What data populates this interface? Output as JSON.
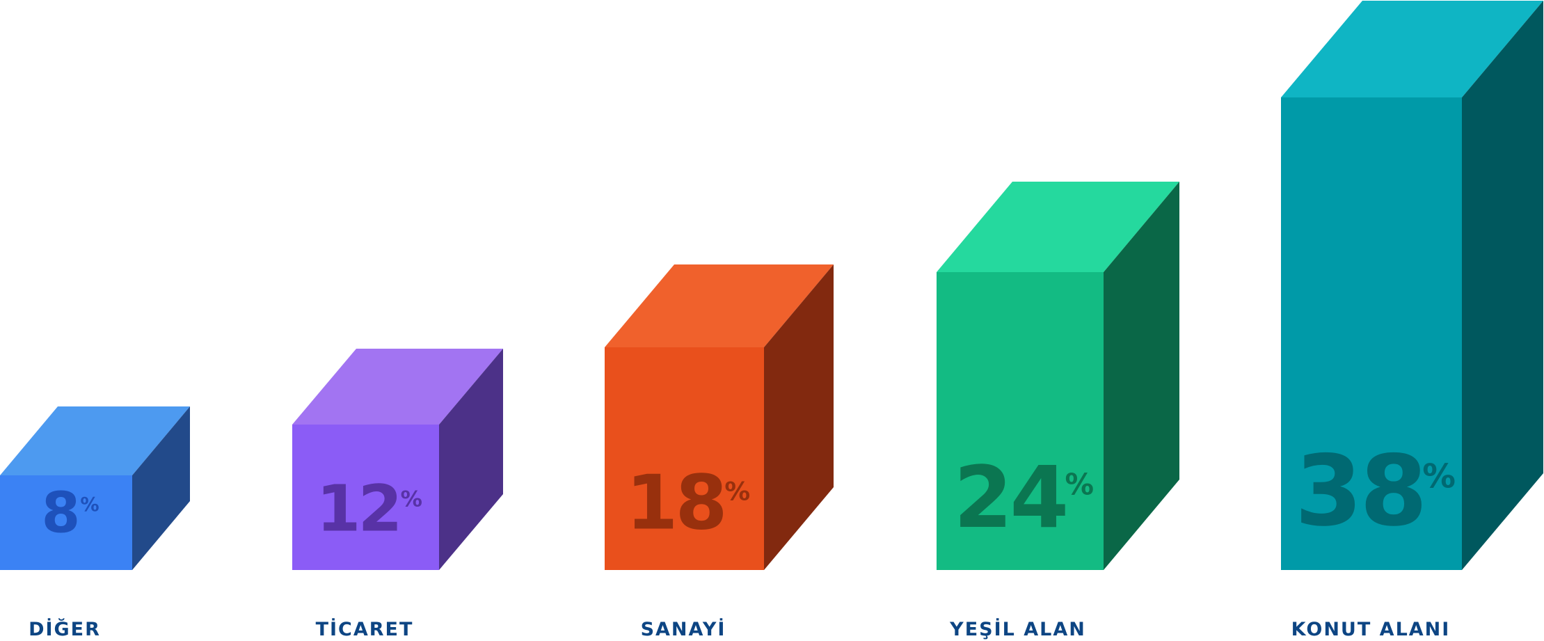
{
  "chart_data": {
    "type": "bar",
    "style": "3d-boxes",
    "categories": [
      "DİĞER",
      "TİCARET",
      "SANAYİ",
      "YEŞİL ALAN",
      "KONUT ALANI"
    ],
    "values": [
      8,
      12,
      18,
      24,
      38
    ],
    "value_labels": [
      "8",
      "12",
      "18",
      "24",
      "38"
    ],
    "unit": "%",
    "title": "",
    "xlabel": "",
    "ylabel": "",
    "grid": false,
    "label_color": "#0d4583",
    "colors": [
      {
        "front": "#3b82f4",
        "top": "#4d9af0",
        "side": "#224a8a",
        "text": "#1a49b0"
      },
      {
        "front": "#8b5cf6",
        "top": "#a274f2",
        "side": "#4c3188",
        "text": "#4f2a98"
      },
      {
        "front": "#e9501c",
        "top": "#f0612c",
        "side": "#82290f",
        "text": "#8a2a0a"
      },
      {
        "front": "#13bb83",
        "top": "#25d99e",
        "side": "#0a6747",
        "text": "#0b6a49"
      },
      {
        "front": "#009aa8",
        "top": "#0fb5c4",
        "side": "#00585e",
        "text": "#006068"
      }
    ]
  }
}
